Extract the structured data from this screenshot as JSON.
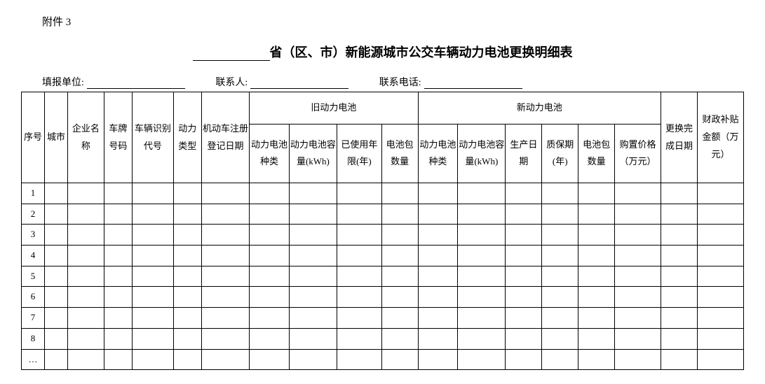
{
  "attachment_label": "附件 3",
  "title_suffix": "省（区、市）新能源城市公交车辆动力电池更换明细表",
  "meta": {
    "reporter_label": "填报单位:",
    "contact_label": "联系人:",
    "phone_label": "联系电话:"
  },
  "table": {
    "columns": {
      "seq": "序号",
      "city": "城市",
      "enterprise": "企业名称",
      "plate": "车牌号码",
      "vin": "车辆识别代号",
      "power_type": "动力类型",
      "reg_date": "机动车注册登记日期",
      "old_battery_group": "旧动力电池",
      "old_battery_type": "动力电池种类",
      "old_capacity": "动力电池容量(kWh)",
      "old_years": "已使用年限(年)",
      "old_pack_count": "电池包数量",
      "new_battery_group": "新动力电池",
      "new_battery_type": "动力电池种类",
      "new_capacity": "动力电池容量(kWh)",
      "prod_date": "生产日期",
      "warranty": "质保期(年)",
      "new_pack_count": "电池包数量",
      "price": "购置价格（万元）",
      "done_date": "更换完成日期",
      "subsidy": "财政补贴金额（万元）"
    },
    "rows": [
      "1",
      "2",
      "3",
      "4",
      "5",
      "6",
      "7",
      "8",
      "…"
    ],
    "styling": {
      "border_color": "#000000",
      "background_color": "#ffffff",
      "header_fontsize": 13,
      "body_fontsize": 13,
      "total_columns": 19
    }
  }
}
